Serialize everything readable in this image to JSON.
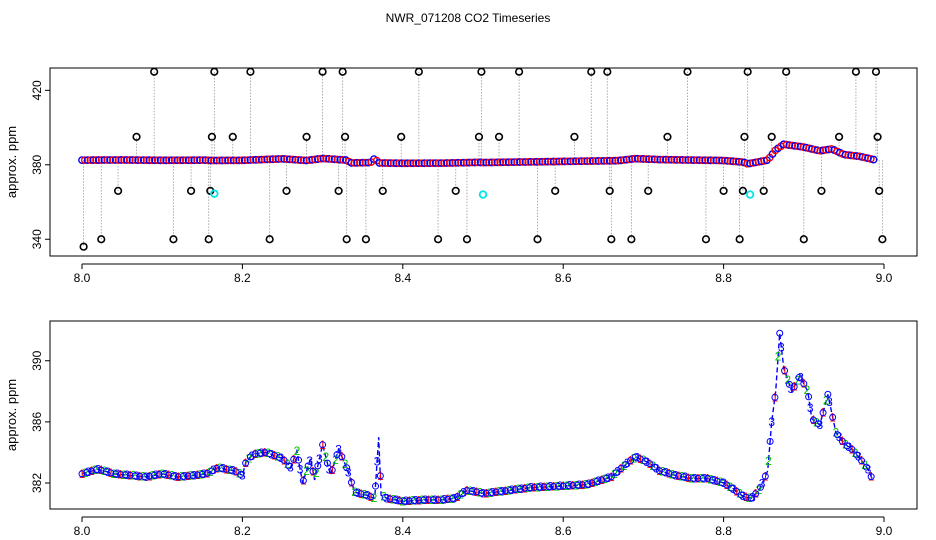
{
  "title": "NWR_071208  CO2 Timeseries",
  "chart_data": [
    {
      "type": "scatter",
      "ylabel": "approx. ppm",
      "xlim": [
        8.0,
        9.0
      ],
      "ylim": [
        331,
        432
      ],
      "xticks": [
        "8.0",
        "8.2",
        "8.4",
        "8.6",
        "8.8",
        "9.0"
      ],
      "yticks": [
        "340",
        "380",
        "420"
      ],
      "flag_colors": {
        "outlier": "#000000",
        "highlight": "#00e5e5",
        "main": "#0000ff",
        "alt": "#00c000",
        "edge": "#ff0000",
        "spike_line": "#999999"
      },
      "baseline": [
        [
          8.0,
          382.5
        ],
        [
          8.05,
          382.6
        ],
        [
          8.1,
          382.4
        ],
        [
          8.155,
          382.5
        ],
        [
          8.16,
          382.3
        ],
        [
          8.2,
          382.4
        ],
        [
          8.25,
          383.2
        ],
        [
          8.28,
          382.3
        ],
        [
          8.3,
          383.4
        ],
        [
          8.33,
          382.5
        ],
        [
          8.335,
          381.0
        ],
        [
          8.36,
          381.2
        ],
        [
          8.365,
          383.5
        ],
        [
          8.37,
          381.0
        ],
        [
          8.4,
          380.8
        ],
        [
          8.45,
          380.9
        ],
        [
          8.495,
          381.3
        ],
        [
          8.5,
          381.2
        ],
        [
          8.55,
          381.5
        ],
        [
          8.6,
          381.8
        ],
        [
          8.665,
          382.2
        ],
        [
          8.67,
          382.3
        ],
        [
          8.69,
          383.3
        ],
        [
          8.72,
          382.8
        ],
        [
          8.75,
          382.6
        ],
        [
          8.8,
          382.3
        ],
        [
          8.825,
          381.4
        ],
        [
          8.83,
          380.5
        ],
        [
          8.855,
          382.5
        ],
        [
          8.865,
          388.0
        ],
        [
          8.875,
          391.0
        ],
        [
          8.9,
          389.5
        ],
        [
          8.92,
          387.5
        ],
        [
          8.935,
          388.5
        ],
        [
          8.95,
          385.5
        ],
        [
          8.97,
          384.5
        ],
        [
          8.99,
          382.5
        ]
      ],
      "outliers": [
        [
          8.002,
          336
        ],
        [
          8.024,
          340
        ],
        [
          8.045,
          366
        ],
        [
          8.068,
          395
        ],
        [
          8.09,
          430
        ],
        [
          8.114,
          340
        ],
        [
          8.136,
          366
        ],
        [
          8.158,
          340
        ],
        [
          8.16,
          366
        ],
        [
          8.162,
          395
        ],
        [
          8.165,
          430
        ],
        [
          8.188,
          395
        ],
        [
          8.21,
          430
        ],
        [
          8.234,
          340
        ],
        [
          8.255,
          366
        ],
        [
          8.28,
          395
        ],
        [
          8.3,
          430
        ],
        [
          8.32,
          366
        ],
        [
          8.325,
          430
        ],
        [
          8.328,
          395
        ],
        [
          8.33,
          340
        ],
        [
          8.354,
          340
        ],
        [
          8.375,
          366
        ],
        [
          8.398,
          395
        ],
        [
          8.42,
          430
        ],
        [
          8.444,
          340
        ],
        [
          8.466,
          366
        ],
        [
          8.48,
          340
        ],
        [
          8.495,
          395
        ],
        [
          8.498,
          430
        ],
        [
          8.52,
          395
        ],
        [
          8.545,
          430
        ],
        [
          8.568,
          340
        ],
        [
          8.59,
          366
        ],
        [
          8.614,
          395
        ],
        [
          8.635,
          430
        ],
        [
          8.655,
          430
        ],
        [
          8.658,
          366
        ],
        [
          8.66,
          340
        ],
        [
          8.685,
          340
        ],
        [
          8.706,
          366
        ],
        [
          8.73,
          395
        ],
        [
          8.755,
          430
        ],
        [
          8.778,
          340
        ],
        [
          8.8,
          366
        ],
        [
          8.82,
          340
        ],
        [
          8.824,
          366
        ],
        [
          8.826,
          395
        ],
        [
          8.83,
          430
        ],
        [
          8.85,
          366
        ],
        [
          8.86,
          395
        ],
        [
          8.878,
          430
        ],
        [
          8.9,
          340
        ],
        [
          8.922,
          366
        ],
        [
          8.944,
          395
        ],
        [
          8.965,
          430
        ],
        [
          8.99,
          430
        ],
        [
          8.992,
          395
        ],
        [
          8.994,
          366
        ],
        [
          8.998,
          340
        ]
      ],
      "highlights": [
        [
          8.165,
          364.5
        ],
        [
          8.5,
          364.0
        ],
        [
          8.833,
          364.0
        ]
      ]
    },
    {
      "type": "line",
      "ylabel": "approx. ppm",
      "xlim": [
        8.0,
        9.0
      ],
      "ylim": [
        380.3,
        392.6
      ],
      "xticks": [
        "8.0",
        "8.2",
        "8.4",
        "8.6",
        "8.8",
        "9.0"
      ],
      "yticks": [
        "382",
        "386",
        "390"
      ],
      "point_markers": [
        "1",
        "2",
        "3"
      ],
      "marker_colors": [
        "#ff0000",
        "#00c000",
        "#0000ff"
      ],
      "series": [
        {
          "values": [
            [
              8.0,
              382.6
            ],
            [
              8.02,
              382.9
            ],
            [
              8.04,
              382.6
            ],
            [
              8.06,
              382.5
            ],
            [
              8.08,
              382.4
            ],
            [
              8.1,
              382.6
            ],
            [
              8.12,
              382.4
            ],
            [
              8.14,
              382.5
            ],
            [
              8.155,
              382.6
            ],
            [
              8.17,
              383.0
            ],
            [
              8.19,
              382.8
            ],
            [
              8.2,
              382.5
            ],
            [
              8.205,
              383.5
            ],
            [
              8.215,
              383.9
            ],
            [
              8.23,
              384.0
            ],
            [
              8.24,
              383.8
            ],
            [
              8.25,
              383.6
            ],
            [
              8.26,
              383.0
            ],
            [
              8.268,
              384.1
            ],
            [
              8.275,
              382.0
            ],
            [
              8.285,
              383.6
            ],
            [
              8.29,
              382.2
            ],
            [
              8.3,
              384.5
            ],
            [
              8.31,
              382.5
            ],
            [
              8.32,
              384.2
            ],
            [
              8.33,
              383.0
            ],
            [
              8.34,
              381.4
            ],
            [
              8.355,
              381.2
            ],
            [
              8.365,
              381.0
            ],
            [
              8.37,
              385.0
            ],
            [
              8.373,
              381.2
            ],
            [
              8.38,
              381.0
            ],
            [
              8.4,
              380.8
            ],
            [
              8.43,
              380.9
            ],
            [
              8.45,
              380.9
            ],
            [
              8.465,
              381.0
            ],
            [
              8.48,
              381.5
            ],
            [
              8.495,
              381.4
            ],
            [
              8.5,
              381.3
            ],
            [
              8.53,
              381.5
            ],
            [
              8.56,
              381.7
            ],
            [
              8.6,
              381.8
            ],
            [
              8.63,
              381.9
            ],
            [
              8.66,
              382.4
            ],
            [
              8.68,
              383.3
            ],
            [
              8.69,
              383.7
            ],
            [
              8.7,
              383.5
            ],
            [
              8.71,
              383.2
            ],
            [
              8.72,
              382.8
            ],
            [
              8.74,
              382.5
            ],
            [
              8.76,
              382.3
            ],
            [
              8.78,
              382.3
            ],
            [
              8.8,
              382.0
            ],
            [
              8.815,
              381.5
            ],
            [
              8.825,
              381.1
            ],
            [
              8.835,
              381.0
            ],
            [
              8.845,
              381.6
            ],
            [
              8.855,
              382.8
            ],
            [
              8.86,
              386.0
            ],
            [
              8.865,
              388.0
            ],
            [
              8.87,
              391.8
            ],
            [
              8.875,
              389.5
            ],
            [
              8.885,
              388.0
            ],
            [
              8.895,
              389.0
            ],
            [
              8.905,
              388.0
            ],
            [
              8.91,
              386.2
            ],
            [
              8.92,
              385.8
            ],
            [
              8.925,
              386.8
            ],
            [
              8.93,
              387.8
            ],
            [
              8.94,
              385.3
            ],
            [
              8.95,
              384.6
            ],
            [
              8.96,
              384.2
            ],
            [
              8.97,
              383.6
            ],
            [
              8.98,
              382.9
            ],
            [
              8.985,
              382.3
            ]
          ]
        }
      ]
    }
  ]
}
